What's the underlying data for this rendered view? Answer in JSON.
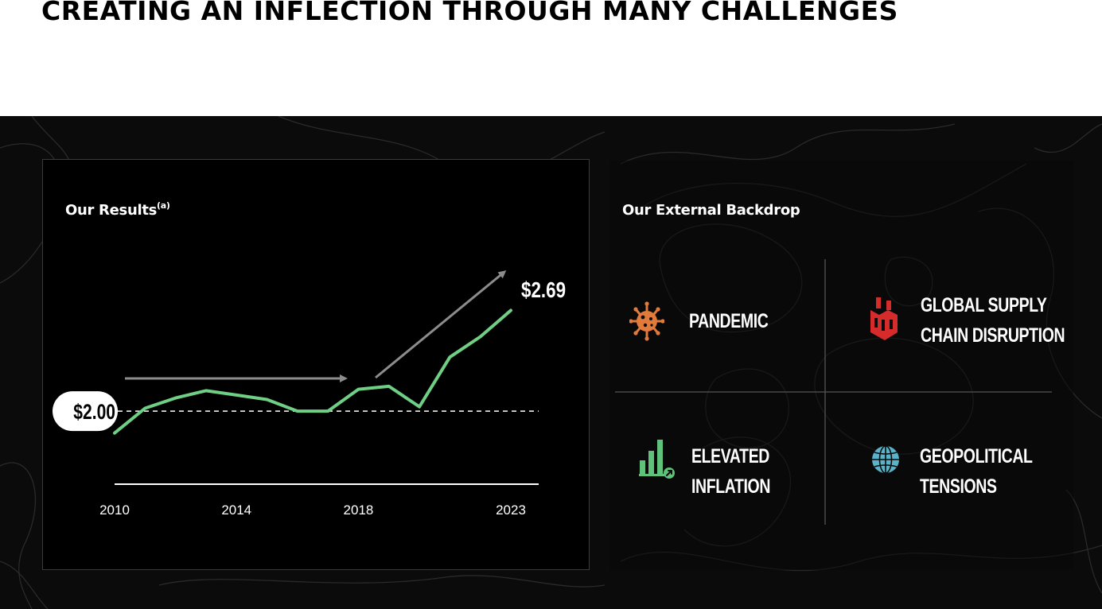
{
  "page": {
    "title": "CREATING AN INFLECTION THROUGH MANY CHALLENGES"
  },
  "results": {
    "heading": "Our Results",
    "heading_note": "(a)"
  },
  "chart_data": {
    "type": "line",
    "x": [
      2010,
      2011,
      2012,
      2013,
      2014,
      2015,
      2016,
      2017,
      2018,
      2019,
      2020,
      2021,
      2022,
      2023
    ],
    "values": [
      1.85,
      2.02,
      2.09,
      2.14,
      2.11,
      2.08,
      2.0,
      2.0,
      2.15,
      2.17,
      2.03,
      2.37,
      2.51,
      2.69
    ],
    "x_ticks": [
      "2010",
      "2014",
      "2018",
      "2023"
    ],
    "reference_line": {
      "value": 2.0,
      "label": "$2.00"
    },
    "end_label": "$2.69",
    "xlim": [
      2010,
      2023
    ],
    "ylim": [
      1.5,
      2.85
    ],
    "grid": false,
    "line_color": "#6fcf84",
    "trend_arrow_color": "#8c8c8c",
    "reference_line_color": "#ffffff"
  },
  "backdrop": {
    "heading": "Our External Backdrop",
    "items": [
      {
        "lines": [
          "PANDEMIC"
        ],
        "icon": "virus-icon",
        "color": "#e07b3c"
      },
      {
        "lines": [
          "GLOBAL SUPPLY",
          "CHAIN DISRUPTION"
        ],
        "icon": "factory-icon",
        "color": "#d62b2b"
      },
      {
        "lines": [
          "ELEVATED",
          "INFLATION"
        ],
        "icon": "rising-bars-icon",
        "color": "#5fc27a"
      },
      {
        "lines": [
          "GEOPOLITICAL",
          "TENSIONS"
        ],
        "icon": "globe-icon",
        "color": "#5bb3c9"
      }
    ]
  }
}
